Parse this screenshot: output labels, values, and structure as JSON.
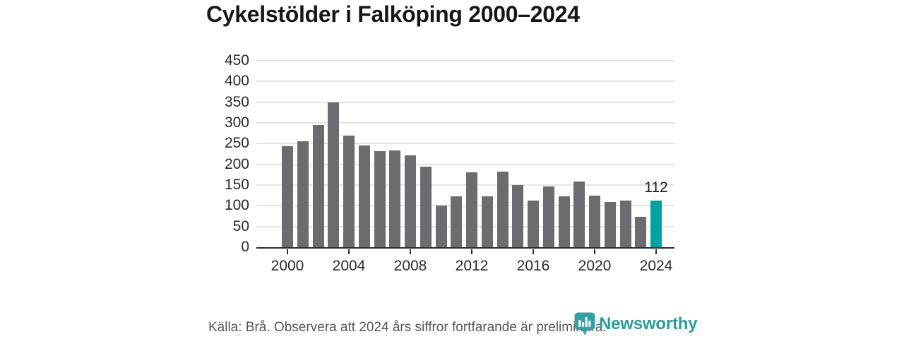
{
  "chart_data": {
    "type": "bar",
    "title": "Cykelstölder i Falköping 2000–2024",
    "categories": [
      "2000",
      "2001",
      "2002",
      "2003",
      "2004",
      "2005",
      "2006",
      "2007",
      "2008",
      "2009",
      "2010",
      "2011",
      "2012",
      "2013",
      "2014",
      "2015",
      "2016",
      "2017",
      "2018",
      "2019",
      "2020",
      "2021",
      "2022",
      "2023",
      "2024"
    ],
    "values": [
      244,
      255,
      295,
      350,
      270,
      245,
      231,
      233,
      221,
      194,
      100,
      122,
      181,
      122,
      182,
      150,
      113,
      147,
      123,
      158,
      124,
      109,
      113,
      73,
      112
    ],
    "ylim": [
      0,
      450
    ],
    "ytick_step": 50,
    "ytick_labels": [
      "0",
      "50",
      "100",
      "150",
      "200",
      "250",
      "300",
      "350",
      "400",
      "450"
    ],
    "xtick_labels": [
      "2000",
      "2004",
      "2008",
      "2012",
      "2016",
      "2020",
      "2024"
    ],
    "highlight": {
      "category": "2024",
      "index": 24,
      "value": 112,
      "label": "112"
    },
    "colors": {
      "bar": "#6b6b70",
      "highlight_bar": "#00a2a2",
      "gridline": "#e4e4e4",
      "axis": "#2b2b2b",
      "tick_text": "#2b2b2b"
    },
    "grid": "horizontal",
    "legend": "none"
  },
  "footer": {
    "source_note": "Källa: Brå. Observera att 2024 års siffror fortfarande är preliminära."
  },
  "brand": {
    "name": "Newsworthy",
    "logo_icon": "bar-chart-pin-icon",
    "color": "#2b9c9c"
  }
}
